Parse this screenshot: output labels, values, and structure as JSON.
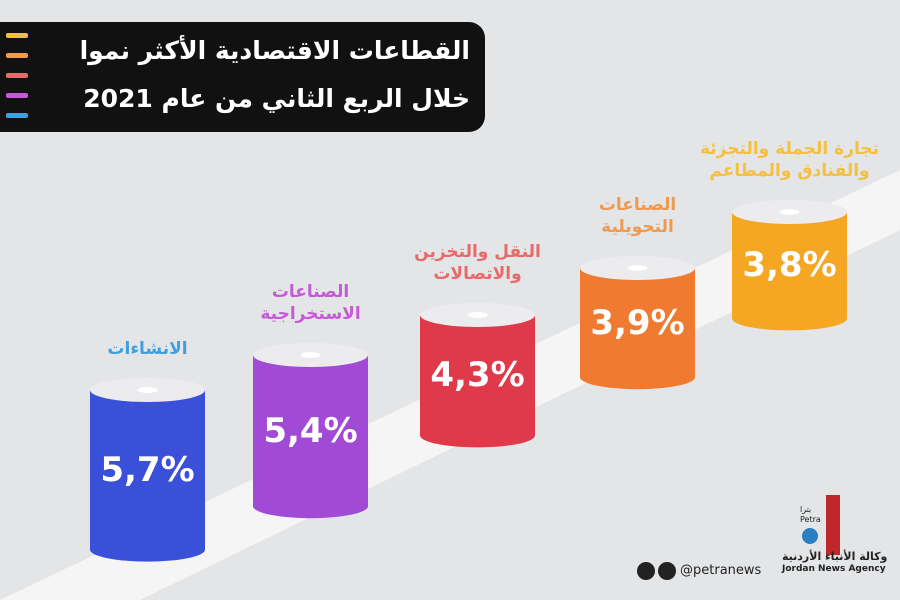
{
  "chart_data": {
    "type": "bar",
    "title": [
      "القطاعات الاقتصادية الأكثر نموا",
      "خلال الربع الثاني من عام 2021"
    ],
    "categories": [
      "الانشاءات",
      "الصناعات\nالاستخراجية",
      "النقل والتخزين\nوالاتصالات",
      "الصناعات\nالتحويلية",
      "تجارة الجملة والتجزئة\nوالفنادق والمطاعم"
    ],
    "values": [
      5.7,
      5.4,
      4.3,
      3.9,
      3.8
    ],
    "value_labels": [
      "5,7%",
      "5,4%",
      "4,3%",
      "3,9%",
      "3,8%"
    ],
    "colors": [
      "#3a50d8",
      "#a04ad6",
      "#e03a4a",
      "#f07a30",
      "#f5a623"
    ],
    "label_colors": [
      "#3fa0e0",
      "#c659d8",
      "#e86a6a",
      "#f09a50",
      "#f5c040"
    ]
  },
  "footer": {
    "handle": "@petranews",
    "agency_ar": "وكالة الأنباء الأردنية",
    "agency_en": "Jordan News Agency",
    "brand_ar": "بترا",
    "brand_en": "Petra"
  }
}
